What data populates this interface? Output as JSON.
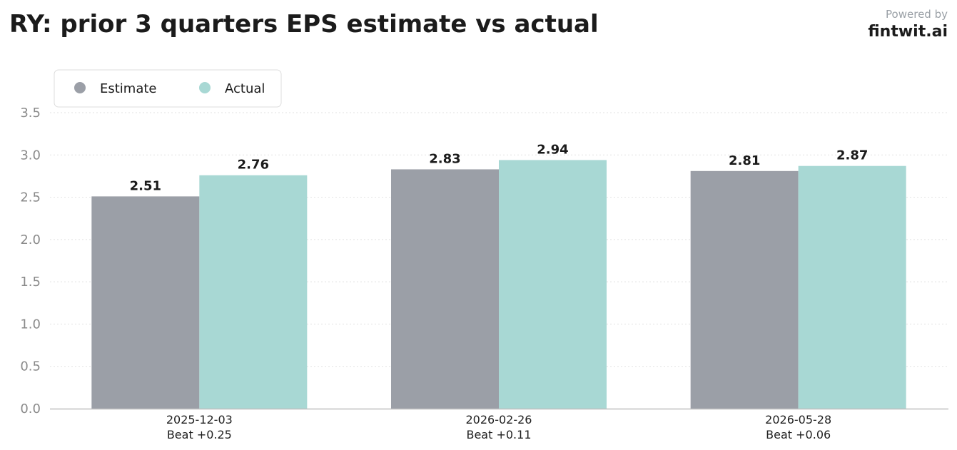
{
  "header": {
    "title": "RY: prior 3 quarters EPS estimate vs actual",
    "powered_by": "Powered by",
    "brand": "fintwit.ai"
  },
  "chart_data": {
    "type": "bar",
    "title": "RY: prior 3 quarters EPS estimate vs actual",
    "categories": [
      "2025-12-03",
      "2026-02-26",
      "2026-05-28"
    ],
    "category_sublabels": [
      "Beat +0.25",
      "Beat +0.11",
      "Beat +0.06"
    ],
    "series": [
      {
        "name": "Estimate",
        "values": [
          2.51,
          2.83,
          2.81
        ],
        "color": "#9b9fa7"
      },
      {
        "name": "Actual",
        "values": [
          2.76,
          2.94,
          2.87
        ],
        "color": "#a8d8d4"
      }
    ],
    "value_labels": {
      "Estimate": [
        "2.51",
        "2.83",
        "2.81"
      ],
      "Actual": [
        "2.76",
        "2.94",
        "2.87"
      ]
    },
    "ylim": [
      0,
      3.5
    ],
    "yticks": [
      "0.0",
      "0.5",
      "1.0",
      "1.5",
      "2.0",
      "2.5",
      "3.0",
      "3.5"
    ],
    "xlabel": "",
    "ylabel": "",
    "grid": true,
    "legend_position": "top-left"
  }
}
